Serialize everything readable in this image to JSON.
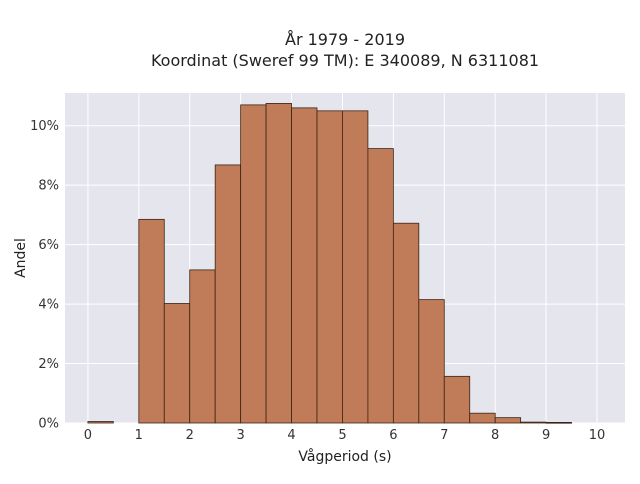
{
  "chart_data": {
    "type": "bar",
    "title_lines": [
      "År 1979 - 2019",
      "Koordinat (Sweref 99 TM): E 340089, N 6311081"
    ],
    "xlabel": "Vågperiod (s)",
    "ylabel": "Andel",
    "xlim": [
      -0.45,
      10.55
    ],
    "ylim": [
      0,
      11.1
    ],
    "x_ticks": [
      0,
      1,
      2,
      3,
      4,
      5,
      6,
      7,
      8,
      9,
      10
    ],
    "y_ticks": [
      0,
      2,
      4,
      6,
      8,
      10
    ],
    "y_tick_labels": [
      "0%",
      "2%",
      "4%",
      "6%",
      "8%",
      "10%"
    ],
    "bin_width": 0.5,
    "bins": [
      {
        "x0": 0.0,
        "x1": 0.5,
        "value": 0.05
      },
      {
        "x0": 0.5,
        "x1": 1.0,
        "value": 0.0
      },
      {
        "x0": 1.0,
        "x1": 1.5,
        "value": 6.85
      },
      {
        "x0": 1.5,
        "x1": 2.0,
        "value": 4.02
      },
      {
        "x0": 2.0,
        "x1": 2.5,
        "value": 5.15
      },
      {
        "x0": 2.5,
        "x1": 3.0,
        "value": 8.68
      },
      {
        "x0": 3.0,
        "x1": 3.5,
        "value": 10.7
      },
      {
        "x0": 3.5,
        "x1": 4.0,
        "value": 10.75
      },
      {
        "x0": 4.0,
        "x1": 4.5,
        "value": 10.6
      },
      {
        "x0": 4.5,
        "x1": 5.0,
        "value": 10.5
      },
      {
        "x0": 5.0,
        "x1": 5.5,
        "value": 10.5
      },
      {
        "x0": 5.5,
        "x1": 6.0,
        "value": 9.23
      },
      {
        "x0": 6.0,
        "x1": 6.5,
        "value": 6.72
      },
      {
        "x0": 6.5,
        "x1": 7.0,
        "value": 4.15
      },
      {
        "x0": 7.0,
        "x1": 7.5,
        "value": 1.57
      },
      {
        "x0": 7.5,
        "x1": 8.0,
        "value": 0.33
      },
      {
        "x0": 8.0,
        "x1": 8.5,
        "value": 0.18
      },
      {
        "x0": 8.5,
        "x1": 9.0,
        "value": 0.03
      },
      {
        "x0": 9.0,
        "x1": 9.5,
        "value": 0.02
      },
      {
        "x0": 9.5,
        "x1": 10.0,
        "value": 0.0
      }
    ],
    "bar_color": "#c07b58",
    "plot_background": "#e5e5ee",
    "grid": true,
    "legend": false
  }
}
